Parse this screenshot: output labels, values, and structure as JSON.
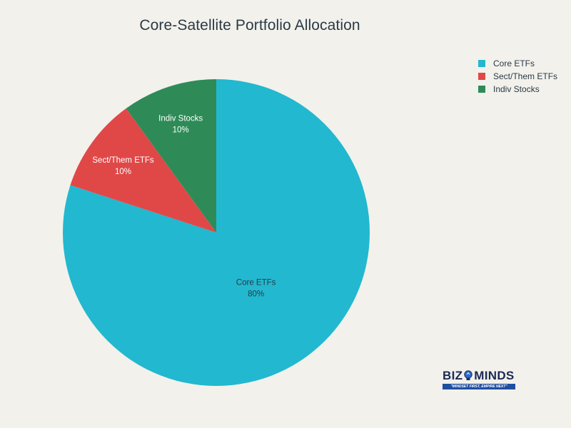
{
  "chart_data": {
    "type": "pie",
    "title": "Core-Satellite Portfolio Allocation",
    "slices": [
      {
        "label": "Core ETFs",
        "value": 80,
        "value_label": "80%",
        "color": "#22b8cf"
      },
      {
        "label": "Sect/Them ETFs",
        "value": 10,
        "value_label": "10%",
        "color": "#e04848"
      },
      {
        "label": "Indiv Stocks",
        "value": 10,
        "value_label": "10%",
        "color": "#2e8b57"
      }
    ],
    "legend": {
      "position": "top-right",
      "entries": [
        "Core ETFs",
        "Sect/Them ETFs",
        "Indiv Stocks"
      ]
    }
  },
  "logo": {
    "left_text": "BIZ",
    "right_text": "MINDS",
    "tagline": "\"MINDSET FIRST, EMPIRE NEXT\""
  }
}
